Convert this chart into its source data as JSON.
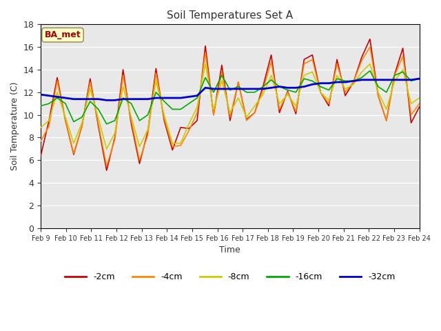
{
  "title": "Soil Temperatures Set A",
  "xlabel": "Time",
  "ylabel": "Soil Temperature (C)",
  "ylim": [
    0,
    18
  ],
  "yticks": [
    0,
    2,
    4,
    6,
    8,
    10,
    12,
    14,
    16,
    18
  ],
  "annotation": "BA_met",
  "bg_color": "#e8e8e8",
  "plot_bg_color": "#e8e8e8",
  "line_colors": {
    "-2cm": "#cc0000",
    "-4cm": "#ff8800",
    "-8cm": "#cccc00",
    "-16cm": "#00aa00",
    "-32cm": "#0000cc"
  },
  "x_labels": [
    "Feb 9",
    "Feb 10",
    "Feb 11",
    "Feb 12",
    "Feb 13",
    "Feb 14",
    "Feb 15",
    "Feb 16",
    "Feb 17",
    "Feb 18",
    "Feb 19",
    "Feb 20",
    "Feb 21",
    "Feb 22",
    "Feb 23",
    "Feb 24"
  ],
  "legend_labels": [
    "-2cm",
    "-4cm",
    "-8cm",
    "-16cm",
    "-32cm"
  ],
  "t_2cm": [
    6.4,
    9.5,
    13.3,
    9.5,
    6.5,
    9.0,
    13.2,
    9.0,
    5.1,
    8.0,
    14.0,
    9.2,
    5.7,
    8.5,
    14.1,
    9.5,
    6.9,
    8.9,
    8.8,
    9.5,
    16.1,
    10.0,
    14.4,
    9.5,
    12.9,
    9.6,
    10.2,
    12.5,
    15.3,
    10.2,
    12.1,
    10.1,
    14.9,
    15.3,
    12.0,
    10.8,
    14.9,
    11.7,
    12.9,
    15.1,
    16.7,
    11.7,
    9.5,
    13.6,
    15.9,
    9.3,
    10.7
  ],
  "t_4cm": [
    7.7,
    9.0,
    13.0,
    9.5,
    6.6,
    9.0,
    12.9,
    9.2,
    5.5,
    7.8,
    13.5,
    9.5,
    6.0,
    8.2,
    13.7,
    9.7,
    7.2,
    7.3,
    8.6,
    10.2,
    15.5,
    10.0,
    13.8,
    9.8,
    12.9,
    9.5,
    10.2,
    12.2,
    14.7,
    10.5,
    12.0,
    10.3,
    14.5,
    14.9,
    12.0,
    11.0,
    14.5,
    12.0,
    12.9,
    14.8,
    16.0,
    11.7,
    9.5,
    13.5,
    15.2,
    10.0,
    11.0
  ],
  "t_8cm": [
    8.9,
    9.5,
    12.0,
    9.8,
    7.5,
    9.3,
    12.3,
    9.7,
    7.0,
    8.4,
    12.5,
    9.8,
    7.2,
    8.7,
    13.0,
    10.0,
    7.5,
    7.5,
    9.2,
    10.7,
    14.5,
    10.5,
    13.0,
    10.2,
    11.5,
    9.8,
    10.8,
    11.8,
    13.5,
    11.0,
    11.8,
    10.8,
    13.5,
    13.8,
    12.0,
    11.3,
    13.5,
    12.3,
    12.7,
    13.8,
    14.5,
    12.0,
    10.5,
    13.0,
    14.0,
    11.0,
    11.5
  ],
  "t_16cm": [
    10.8,
    11.0,
    11.5,
    11.0,
    9.4,
    9.8,
    11.2,
    10.5,
    9.2,
    9.5,
    11.5,
    11.0,
    9.5,
    10.0,
    12.0,
    11.2,
    10.5,
    10.5,
    11.0,
    11.5,
    13.3,
    12.0,
    13.5,
    12.2,
    12.5,
    12.0,
    12.0,
    12.5,
    13.1,
    12.5,
    12.2,
    12.0,
    13.2,
    13.0,
    12.5,
    12.2,
    13.2,
    13.0,
    13.0,
    13.3,
    13.9,
    12.5,
    12.0,
    13.5,
    13.8,
    13.0,
    13.2
  ],
  "t_32cm": [
    11.8,
    11.7,
    11.6,
    11.5,
    11.4,
    11.4,
    11.4,
    11.4,
    11.3,
    11.3,
    11.4,
    11.4,
    11.4,
    11.4,
    11.5,
    11.5,
    11.5,
    11.5,
    11.6,
    11.7,
    12.4,
    12.3,
    12.3,
    12.3,
    12.3,
    12.3,
    12.3,
    12.3,
    12.4,
    12.5,
    12.4,
    12.4,
    12.5,
    12.7,
    12.8,
    12.8,
    12.9,
    12.9,
    13.0,
    13.1,
    13.1,
    13.1,
    13.1,
    13.1,
    13.1,
    13.1,
    13.2
  ]
}
